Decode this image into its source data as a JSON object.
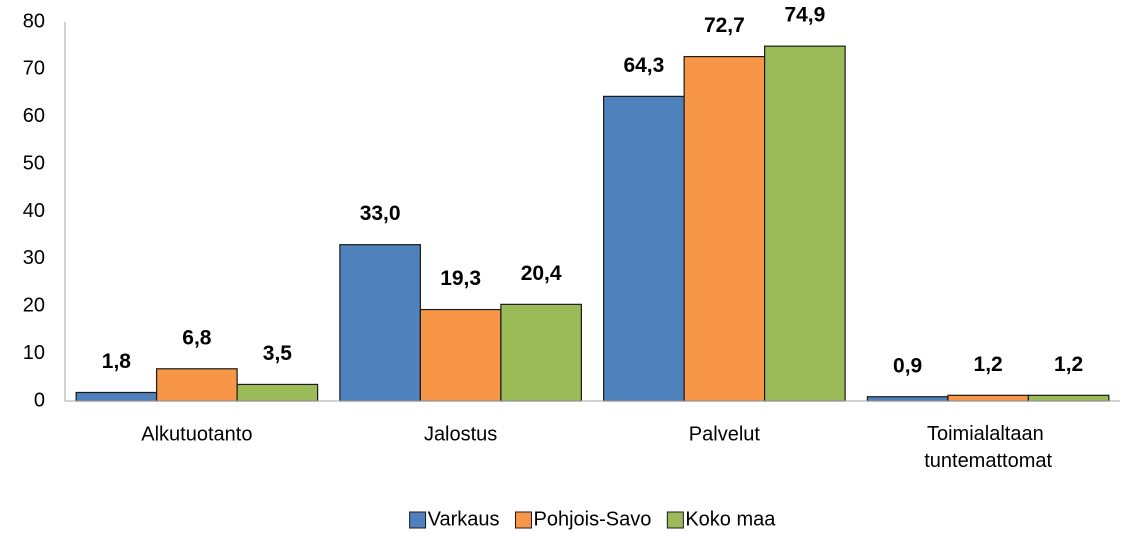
{
  "chart_data": {
    "type": "bar",
    "categories": [
      "Alkutuotanto",
      "Jalostus",
      "Palvelut",
      "Toimialaltaan tuntemattomat"
    ],
    "series": [
      {
        "name": "Varkaus",
        "color": "#4f81bd",
        "values": [
          1.8,
          33.0,
          64.3,
          0.9
        ],
        "value_labels": [
          "1,8",
          "33,0",
          "64,3",
          "0,9"
        ]
      },
      {
        "name": "Pohjois-Savo",
        "color": "#f79646",
        "values": [
          6.8,
          19.3,
          72.7,
          1.2
        ],
        "value_labels": [
          "6,8",
          "19,3",
          "72,7",
          "1,2"
        ]
      },
      {
        "name": "Koko maa",
        "color": "#9bbb59",
        "values": [
          3.5,
          20.4,
          74.9,
          1.2
        ],
        "value_labels": [
          "3,5",
          "20,4",
          "74,9",
          "1,2"
        ]
      }
    ],
    "ylim": [
      0,
      80
    ],
    "yticks": [
      0,
      10,
      20,
      30,
      40,
      50,
      60,
      70,
      80
    ],
    "grid": false,
    "legend": "bottom"
  }
}
